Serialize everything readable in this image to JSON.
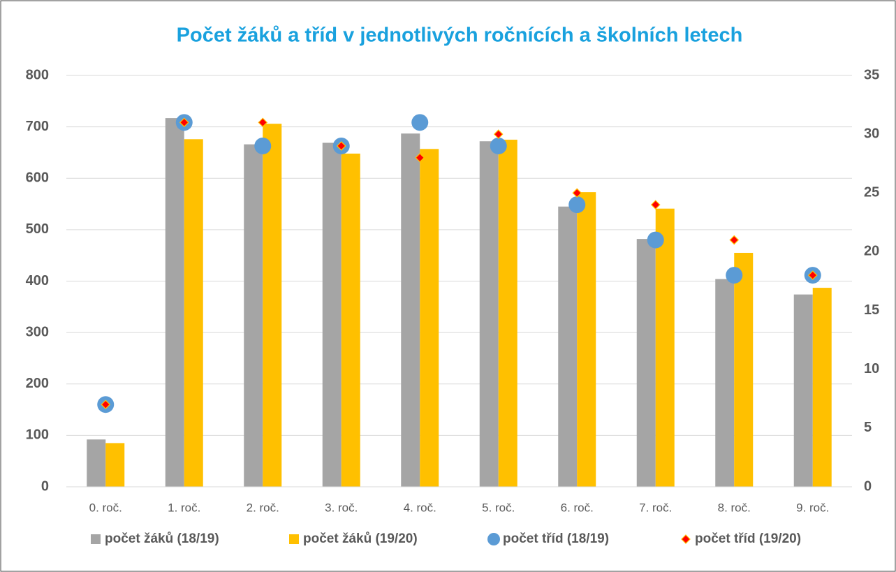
{
  "chart_data": {
    "type": "bar",
    "title": "Počet žáků a tříd v jednotlivých ročnících a školních letech",
    "categories": [
      "0. roč.",
      "1. roč.",
      "2. roč.",
      "3. roč.",
      "4. roč.",
      "5. roč.",
      "6. roč.",
      "7. roč.",
      "8. roč.",
      "9. roč."
    ],
    "series": [
      {
        "name": "počet žáků (18/19)",
        "type": "bar",
        "color": "#a5a5a5",
        "values": [
          92,
          717,
          666,
          669,
          687,
          672,
          545,
          482,
          404,
          374
        ]
      },
      {
        "name": "počet žáků (19/20)",
        "type": "bar",
        "color": "#ffc000",
        "values": [
          85,
          676,
          706,
          648,
          657,
          675,
          573,
          541,
          455,
          387
        ]
      },
      {
        "name": "počet tříd (18/19)",
        "type": "scatter",
        "marker": "circle",
        "axis": "y2",
        "color": "#5b9bd5",
        "values": [
          7,
          31,
          29,
          29,
          31,
          29,
          24,
          21,
          18,
          18
        ]
      },
      {
        "name": "počet tříd (19/20)",
        "type": "scatter",
        "marker": "diamond",
        "axis": "y2",
        "color": "#ff0000",
        "values": [
          7,
          31,
          31,
          29,
          28,
          30,
          25,
          24,
          21,
          18
        ]
      }
    ],
    "ylim": [
      0,
      800
    ],
    "yticks": [
      0,
      100,
      200,
      300,
      400,
      500,
      600,
      700,
      800
    ],
    "y2lim": [
      0,
      35
    ],
    "y2ticks": [
      0,
      5,
      10,
      15,
      20,
      25,
      30,
      35
    ],
    "grid": true,
    "legend": "bottom"
  }
}
